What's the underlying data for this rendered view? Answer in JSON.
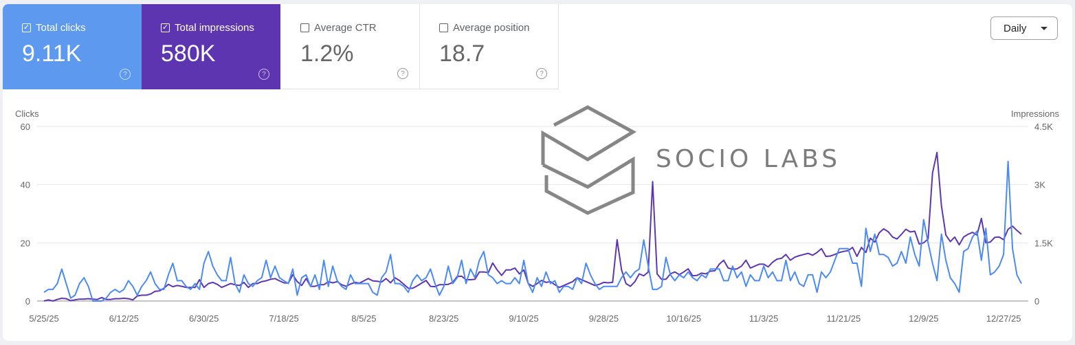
{
  "metrics": [
    {
      "label": "Total clicks",
      "value": "9.11K",
      "checked": true,
      "color": "#5c99ef"
    },
    {
      "label": "Total impressions",
      "value": "580K",
      "checked": true,
      "color": "#5e35b1"
    },
    {
      "label": "Average CTR",
      "value": "1.2%",
      "checked": false
    },
    {
      "label": "Average position",
      "value": "18.7",
      "checked": false
    }
  ],
  "period_select": {
    "value": "Daily"
  },
  "watermark": {
    "text": "SOCIO LABS"
  },
  "chart_data": {
    "type": "line",
    "x_start": "5/25/25",
    "x_end": "12/31/25",
    "x_ticks": [
      "5/25/25",
      "6/12/25",
      "6/30/25",
      "7/18/25",
      "8/5/25",
      "8/23/25",
      "9/10/25",
      "9/28/25",
      "10/16/25",
      "11/3/25",
      "11/21/25",
      "12/9/25",
      "12/27/25"
    ],
    "y_left": {
      "label": "Clicks",
      "ticks": [
        "0",
        "20",
        "40",
        "60"
      ],
      "range": [
        0,
        60
      ]
    },
    "y_right": {
      "label": "Impressions",
      "ticks": [
        "0",
        "1.5K",
        "3K",
        "4.5K"
      ],
      "range": [
        0,
        4500
      ]
    },
    "grid": true,
    "series": [
      {
        "name": "Total clicks",
        "axis": "left",
        "color": "#4a8af4",
        "values": [
          3,
          4,
          4,
          6,
          11,
          6,
          1,
          2,
          6,
          8,
          5,
          0,
          0,
          0,
          1,
          3,
          4,
          3,
          4,
          7,
          5,
          2,
          5,
          7,
          10,
          6,
          4,
          4,
          9,
          13,
          7,
          7,
          5,
          4,
          6,
          4,
          13,
          17,
          12,
          9,
          7,
          7,
          15,
          6,
          3,
          9,
          6,
          5,
          7,
          8,
          14,
          8,
          12,
          8,
          7,
          6,
          11,
          2,
          8,
          9,
          5,
          9,
          4,
          14,
          5,
          12,
          7,
          5,
          4,
          9,
          6,
          6,
          6,
          6,
          3,
          2,
          8,
          10,
          16,
          6,
          6,
          5,
          3,
          7,
          9,
          7,
          8,
          11,
          6,
          2,
          5,
          12,
          6,
          8,
          14,
          6,
          11,
          8,
          14,
          17,
          9,
          8,
          6,
          7,
          6,
          6,
          8,
          6,
          14,
          6,
          3,
          8,
          5,
          10,
          6,
          7,
          3,
          5,
          5,
          4,
          8,
          6,
          13,
          9,
          6,
          4,
          5,
          5,
          5,
          5,
          8,
          10,
          8,
          10,
          11,
          21,
          12,
          4,
          4,
          5,
          15,
          9,
          7,
          9,
          8,
          10,
          8,
          7,
          9,
          8,
          11,
          11,
          11,
          7,
          7,
          12,
          8,
          10,
          5,
          9,
          7,
          7,
          12,
          8,
          10,
          7,
          7,
          14,
          7,
          10,
          6,
          5,
          9,
          9,
          3,
          10,
          8,
          10,
          14,
          18,
          18,
          18,
          13,
          13,
          5,
          25,
          17,
          23,
          16,
          16,
          15,
          12,
          13,
          17,
          13,
          22,
          16,
          12,
          28,
          20,
          13,
          7,
          23,
          14,
          8,
          6,
          3,
          17,
          18,
          22,
          24,
          14,
          25,
          9,
          10,
          12,
          16,
          48,
          18,
          9,
          6
        ]
      },
      {
        "name": "Total impressions",
        "axis": "right",
        "color": "#5e35b1",
        "values": [
          0,
          30,
          0,
          40,
          70,
          60,
          10,
          30,
          50,
          50,
          60,
          50,
          40,
          90,
          40,
          40,
          60,
          60,
          70,
          60,
          30,
          130,
          150,
          150,
          180,
          250,
          260,
          330,
          430,
          370,
          400,
          380,
          350,
          350,
          350,
          550,
          350,
          450,
          480,
          430,
          350,
          400,
          450,
          420,
          400,
          480,
          350,
          450,
          450,
          500,
          520,
          560,
          580,
          520,
          470,
          460,
          680,
          500,
          400,
          580,
          380,
          380,
          420,
          420,
          500,
          470,
          500,
          420,
          380,
          440,
          480,
          460,
          520,
          580,
          520,
          510,
          490,
          580,
          470,
          600,
          530,
          430,
          330,
          330,
          390,
          460,
          530,
          380,
          370,
          420,
          420,
          430,
          480,
          630,
          640,
          550,
          550,
          560,
          750,
          750,
          730,
          980,
          800,
          660,
          800,
          800,
          850,
          700,
          800,
          450,
          380,
          450,
          530,
          480,
          500,
          420,
          350,
          400,
          450,
          500,
          600,
          550,
          500,
          450,
          400,
          430,
          480,
          470,
          480,
          1580,
          800,
          450,
          380,
          500,
          700,
          650,
          750,
          3080,
          700,
          560,
          560,
          700,
          750,
          680,
          750,
          830,
          650,
          660,
          720,
          700,
          770,
          780,
          950,
          1050,
          850,
          820,
          830,
          900,
          1050,
          850,
          900,
          950,
          950,
          880,
          1000,
          1080,
          1100,
          1200,
          1050,
          1130,
          1170,
          1200,
          1230,
          1180,
          1250,
          1350,
          1150,
          1160,
          1200,
          1250,
          1280,
          1300,
          1380,
          1150,
          1380,
          1250,
          1620,
          1520,
          1760,
          1860,
          1790,
          1650,
          1600,
          1720,
          1850,
          1780,
          1800,
          1470,
          1500,
          1600,
          3300,
          3830,
          2450,
          1700,
          1530,
          1650,
          1450,
          1650,
          1720,
          1770,
          1700,
          2130,
          1500,
          1520,
          1640,
          1650,
          1580,
          1850,
          1930,
          1820,
          1720
        ]
      }
    ]
  }
}
